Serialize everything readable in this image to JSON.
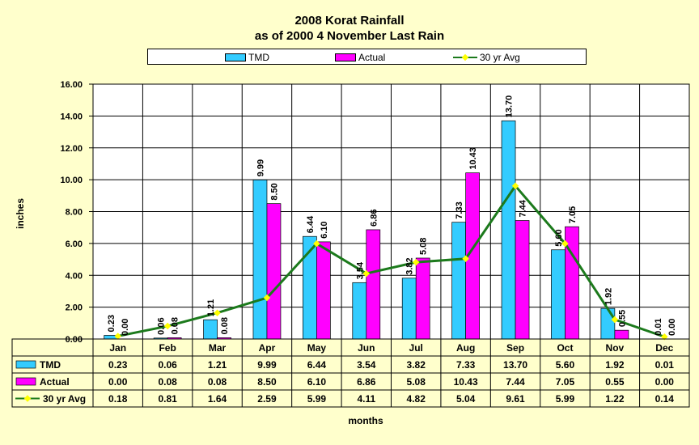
{
  "chart_data": {
    "type": "bar",
    "title": "2008 Korat Rainfall",
    "subtitle": "as of 2000 4 November Last Rain",
    "xlabel": "months",
    "ylabel": "inches",
    "ylim": [
      0,
      16
    ],
    "yticks": [
      "0.00",
      "2.00",
      "4.00",
      "6.00",
      "8.00",
      "10.00",
      "12.00",
      "14.00",
      "16.00"
    ],
    "categories": [
      "Jan",
      "Feb",
      "Mar",
      "Apr",
      "May",
      "Jun",
      "Jul",
      "Aug",
      "Sep",
      "Oct",
      "Nov",
      "Dec"
    ],
    "series": [
      {
        "name": "TMD",
        "kind": "bar",
        "color": "#33ccff",
        "values": [
          0.23,
          0.06,
          1.21,
          9.99,
          6.44,
          3.54,
          3.82,
          7.33,
          13.7,
          5.6,
          1.92,
          0.01
        ],
        "labels": [
          "0.23",
          "0.06",
          "1.21",
          "9.99",
          "6.44",
          "3.54",
          "3.82",
          "7.33",
          "13.70",
          "5.60",
          "1.92",
          "0.01"
        ]
      },
      {
        "name": "Actual",
        "kind": "bar",
        "color": "#ff00ff",
        "values": [
          0.0,
          0.08,
          0.08,
          8.5,
          6.1,
          6.86,
          5.08,
          10.43,
          7.44,
          7.05,
          0.55,
          0.0
        ],
        "labels": [
          "0.00",
          "0.08",
          "0.08",
          "8.50",
          "6.10",
          "6.86",
          "5.08",
          "10.43",
          "7.44",
          "7.05",
          "0.55",
          "0.00"
        ]
      },
      {
        "name": "30 yr Avg",
        "kind": "line",
        "color": "#1c7a1c",
        "marker_color": "#ffff00",
        "values": [
          0.18,
          0.81,
          1.64,
          2.59,
          5.99,
          4.11,
          4.82,
          5.04,
          9.61,
          5.99,
          1.22,
          0.14
        ],
        "labels": [
          "0.18",
          "0.81",
          "1.64",
          "2.59",
          "5.99",
          "4.11",
          "4.82",
          "5.04",
          "9.61",
          "5.99",
          "1.22",
          "0.14"
        ]
      }
    ],
    "grid": true,
    "legend_position": "top",
    "data_table": true,
    "plot_background": "#ffffff",
    "chart_background": "#ffffcc"
  }
}
